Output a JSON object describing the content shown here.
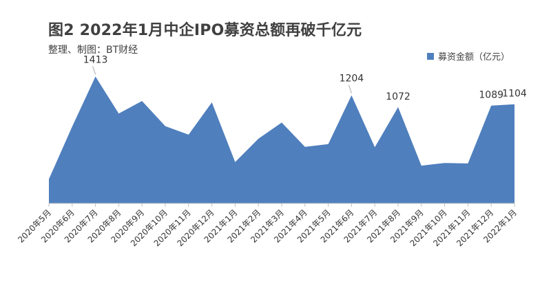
{
  "header": {
    "title": "图2 2022年1月中企IPO募资总额再破千亿元",
    "subtitle": "整理、制图：BT财经"
  },
  "legend": {
    "label": "募资金额（亿元）"
  },
  "colors": {
    "area": "#4f7fbd",
    "axis": "#bfbfbf",
    "leader": "#a6a6a6"
  },
  "chart_data": {
    "type": "area",
    "title": "图2 2022年1月中企IPO募资总额再破千亿元",
    "subtitle": "整理、制图：BT财经",
    "xlabel": "",
    "ylabel": "",
    "ylim": [
      0,
      1500
    ],
    "grid": false,
    "legend_position": "top-right",
    "categories": [
      "2020年5月",
      "2020年6月",
      "2020年7月",
      "2020年8月",
      "2020年9月",
      "2020年10月",
      "2020年11月",
      "2020年12月",
      "2021年1月",
      "2021年2月",
      "2021年3月",
      "2021年4月",
      "2021年5月",
      "2021年6月",
      "2021年7月",
      "2021年8月",
      "2021年9月",
      "2021年10月",
      "2021年11月",
      "2021年12月",
      "2022年1月"
    ],
    "series": [
      {
        "name": "募资金额（亿元）",
        "values": [
          270,
          855,
          1413,
          1000,
          1140,
          860,
          765,
          1125,
          460,
          720,
          900,
          630,
          660,
          1204,
          625,
          1072,
          420,
          450,
          445,
          1089,
          1104
        ],
        "data_labels": [
          {
            "index": 2,
            "text": "1413"
          },
          {
            "index": 13,
            "text": "1204"
          },
          {
            "index": 15,
            "text": "1072"
          },
          {
            "index": 19,
            "text": "1089"
          },
          {
            "index": 20,
            "text": "1104"
          }
        ]
      }
    ]
  }
}
